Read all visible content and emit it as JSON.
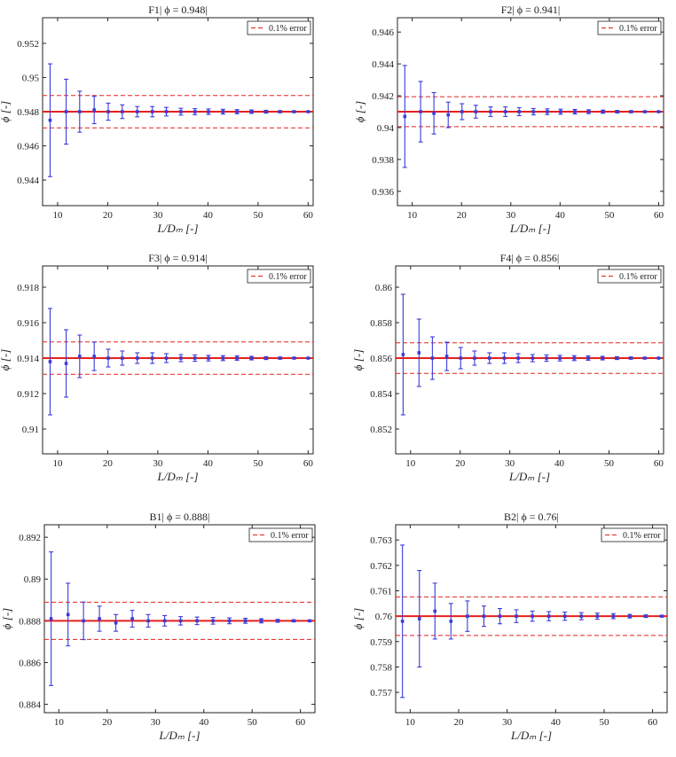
{
  "colors": {
    "reference": "#e8201c",
    "estimate": "#3b3bd8",
    "axis": "#222222"
  },
  "chart_data": [
    {
      "type": "errorbar",
      "title": "F1|  ϕ = 0.948|",
      "xlabel": "L/Dₘ [-]",
      "ylabel": "ϕ [-]",
      "xlim": [
        7,
        61
      ],
      "ylim": [
        0.9425,
        0.9535
      ],
      "xticks": [
        10,
        20,
        30,
        40,
        50,
        60
      ],
      "xtick_labels": [
        "10",
        "20",
        "30",
        "40",
        "50",
        "60"
      ],
      "yticks": [
        0.944,
        0.946,
        0.948,
        0.95,
        0.952
      ],
      "ytick_labels": [
        "0.944",
        "0.946",
        "0.948",
        "0.95",
        "0.952"
      ],
      "reference": 0.948,
      "error_band": [
        0.94705,
        0.94895
      ],
      "legend": "0.1% error",
      "legend_position": "top-right",
      "x": [
        8.5,
        11.7,
        14.4,
        17.3,
        20.1,
        22.9,
        25.9,
        28.9,
        31.7,
        34.6,
        37.4,
        40.1,
        43.0,
        45.8,
        48.7,
        51.6,
        54.4,
        57.2,
        60.0
      ],
      "y": [
        0.9475,
        0.948,
        0.948,
        0.9481,
        0.948,
        0.948,
        0.948,
        0.948,
        0.948,
        0.948,
        0.948,
        0.948,
        0.948,
        0.948,
        0.948,
        0.948,
        0.948,
        0.948,
        0.948
      ],
      "err": [
        0.0033,
        0.0019,
        0.0012,
        0.0008,
        0.0005,
        0.0004,
        0.0003,
        0.0003,
        0.00025,
        0.0002,
        0.00018,
        0.00016,
        0.00014,
        0.00012,
        0.0001,
        8e-05,
        6e-05,
        4e-05,
        2e-05
      ]
    },
    {
      "type": "errorbar",
      "title": "F2|  ϕ = 0.941|",
      "xlabel": "L/Dₘ [-]",
      "ylabel": "ϕ [-]",
      "xlim": [
        7,
        61
      ],
      "ylim": [
        0.9351,
        0.9469
      ],
      "xticks": [
        10,
        20,
        30,
        40,
        50,
        60
      ],
      "xtick_labels": [
        "10",
        "20",
        "30",
        "40",
        "50",
        "60"
      ],
      "yticks": [
        0.936,
        0.938,
        0.94,
        0.942,
        0.944,
        0.946
      ],
      "ytick_labels": [
        "0.936",
        "0.938",
        "0.94",
        "0.942",
        "0.944",
        "0.946"
      ],
      "reference": 0.941,
      "error_band": [
        0.94006,
        0.94194
      ],
      "legend": "0.1% error",
      "legend_position": "top-right",
      "x": [
        8.5,
        11.7,
        14.4,
        17.3,
        20.1,
        22.9,
        25.9,
        28.9,
        31.7,
        34.6,
        37.4,
        40.1,
        43.0,
        45.8,
        48.7,
        51.6,
        54.4,
        57.2,
        60.0
      ],
      "y": [
        0.9407,
        0.941,
        0.9409,
        0.9408,
        0.941,
        0.941,
        0.941,
        0.941,
        0.941,
        0.941,
        0.941,
        0.941,
        0.941,
        0.941,
        0.941,
        0.941,
        0.941,
        0.941,
        0.941
      ],
      "err": [
        0.0032,
        0.0019,
        0.0013,
        0.0008,
        0.0005,
        0.0004,
        0.0003,
        0.0003,
        0.00025,
        0.0002,
        0.00018,
        0.00016,
        0.00014,
        0.00012,
        0.0001,
        8e-05,
        6e-05,
        4e-05,
        2e-05
      ]
    },
    {
      "type": "errorbar",
      "title": "F3|  ϕ = 0.914|",
      "xlabel": "L/Dₘ [-]",
      "ylabel": "ϕ [-]",
      "xlim": [
        7,
        61
      ],
      "ylim": [
        0.9086,
        0.9192
      ],
      "xticks": [
        10,
        20,
        30,
        40,
        50,
        60
      ],
      "xtick_labels": [
        "10",
        "20",
        "30",
        "40",
        "50",
        "60"
      ],
      "yticks": [
        0.91,
        0.912,
        0.914,
        0.916,
        0.918
      ],
      "ytick_labels": [
        "0.91",
        "0.912",
        "0.914",
        "0.916",
        "0.918"
      ],
      "reference": 0.914,
      "error_band": [
        0.91309,
        0.91491
      ],
      "legend": "0.1% error",
      "legend_position": "top-right",
      "x": [
        8.5,
        11.7,
        14.4,
        17.3,
        20.1,
        22.9,
        25.9,
        28.9,
        31.7,
        34.6,
        37.4,
        40.1,
        43.0,
        45.8,
        48.7,
        51.6,
        54.4,
        57.2,
        60.0
      ],
      "y": [
        0.9138,
        0.9137,
        0.9141,
        0.9141,
        0.914,
        0.914,
        0.914,
        0.914,
        0.914,
        0.914,
        0.914,
        0.914,
        0.914,
        0.914,
        0.914,
        0.914,
        0.914,
        0.914,
        0.914
      ],
      "err": [
        0.003,
        0.0019,
        0.0012,
        0.0008,
        0.0005,
        0.0004,
        0.0003,
        0.0003,
        0.00025,
        0.0002,
        0.00018,
        0.00016,
        0.00014,
        0.00012,
        0.0001,
        8e-05,
        6e-05,
        4e-05,
        2e-05
      ]
    },
    {
      "type": "errorbar",
      "title": "F4|  ϕ = 0.856|",
      "xlabel": "L/Dₘ [-]",
      "ylabel": "ϕ [-]",
      "xlim": [
        7,
        61
      ],
      "ylim": [
        0.8506,
        0.8612
      ],
      "xticks": [
        10,
        20,
        30,
        40,
        50,
        60
      ],
      "xtick_labels": [
        "10",
        "20",
        "30",
        "40",
        "50",
        "60"
      ],
      "yticks": [
        0.852,
        0.854,
        0.856,
        0.858,
        0.86
      ],
      "ytick_labels": [
        "0.852",
        "0.854",
        "0.856",
        "0.858",
        "0.86"
      ],
      "reference": 0.856,
      "error_band": [
        0.85514,
        0.85686
      ],
      "legend": "0.1% error",
      "legend_position": "top-right",
      "x": [
        8.5,
        11.7,
        14.4,
        17.3,
        20.1,
        22.9,
        25.9,
        28.9,
        31.7,
        34.6,
        37.4,
        40.1,
        43.0,
        45.8,
        48.7,
        51.6,
        54.4,
        57.2,
        60.0
      ],
      "y": [
        0.8562,
        0.8563,
        0.856,
        0.8561,
        0.856,
        0.856,
        0.856,
        0.856,
        0.856,
        0.856,
        0.856,
        0.856,
        0.856,
        0.856,
        0.856,
        0.856,
        0.856,
        0.856,
        0.856
      ],
      "err": [
        0.0034,
        0.0019,
        0.0012,
        0.0008,
        0.0006,
        0.0004,
        0.0003,
        0.0003,
        0.00025,
        0.0002,
        0.00018,
        0.00016,
        0.00014,
        0.00012,
        0.0001,
        8e-05,
        6e-05,
        4e-05,
        2e-05
      ]
    },
    {
      "type": "errorbar",
      "title": "B1|  ϕ = 0.888|",
      "xlabel": "L/Dₘ [-]",
      "ylabel": "ϕ [-]",
      "xlim": [
        7,
        63
      ],
      "ylim": [
        0.8836,
        0.8926
      ],
      "xticks": [
        10,
        20,
        30,
        40,
        50,
        60
      ],
      "xtick_labels": [
        "10",
        "20",
        "30",
        "40",
        "50",
        "60"
      ],
      "yticks": [
        0.884,
        0.886,
        0.888,
        0.89,
        0.892
      ],
      "ytick_labels": [
        "0.884",
        "0.886",
        "0.888",
        "0.89",
        "0.892"
      ],
      "reference": 0.888,
      "error_band": [
        0.88711,
        0.88889
      ],
      "legend": "0.1% error",
      "legend_position": "top-right",
      "x": [
        8.4,
        11.9,
        15.1,
        18.4,
        21.8,
        25.2,
        28.5,
        31.9,
        35.2,
        38.6,
        41.9,
        45.3,
        48.6,
        51.9,
        55.3,
        58.6,
        61.9
      ],
      "y": [
        0.8881,
        0.8883,
        0.888,
        0.8881,
        0.8879,
        0.8881,
        0.888,
        0.888,
        0.888,
        0.888,
        0.888,
        0.888,
        0.888,
        0.888,
        0.888,
        0.888,
        0.888
      ],
      "err": [
        0.0032,
        0.0015,
        0.0009,
        0.0006,
        0.0004,
        0.0004,
        0.0003,
        0.00025,
        0.0002,
        0.00018,
        0.00016,
        0.00014,
        0.00012,
        0.0001,
        7e-05,
        5e-05,
        3e-05
      ]
    },
    {
      "type": "errorbar",
      "title": "B2|  ϕ = 0.76|",
      "xlabel": "L/Dₘ [-]",
      "ylabel": "ϕ [-]",
      "xlim": [
        7,
        63
      ],
      "ylim": [
        0.7562,
        0.7636
      ],
      "xticks": [
        10,
        20,
        30,
        40,
        50,
        60
      ],
      "xtick_labels": [
        "10",
        "20",
        "30",
        "40",
        "50",
        "60"
      ],
      "yticks": [
        0.757,
        0.758,
        0.759,
        0.76,
        0.761,
        0.762,
        0.763
      ],
      "ytick_labels": [
        "0.757",
        "0.758",
        "0.759",
        "0.76",
        "0.761",
        "0.762",
        "0.763"
      ],
      "reference": 0.76,
      "error_band": [
        0.75924,
        0.76076
      ],
      "legend": "0.1% error",
      "legend_position": "top-right",
      "x": [
        8.4,
        11.9,
        15.1,
        18.4,
        21.8,
        25.2,
        28.5,
        31.9,
        35.2,
        38.6,
        41.9,
        45.3,
        48.6,
        51.9,
        55.3,
        58.6,
        61.9
      ],
      "y": [
        0.7598,
        0.7599,
        0.7602,
        0.7598,
        0.76,
        0.76,
        0.76,
        0.76,
        0.76,
        0.76,
        0.76,
        0.76,
        0.76,
        0.76,
        0.76,
        0.76,
        0.76
      ],
      "err": [
        0.003,
        0.0019,
        0.0011,
        0.0007,
        0.0006,
        0.0004,
        0.0003,
        0.00025,
        0.0002,
        0.00018,
        0.00016,
        0.00014,
        0.00012,
        0.0001,
        7e-05,
        5e-05,
        3e-05
      ]
    }
  ]
}
